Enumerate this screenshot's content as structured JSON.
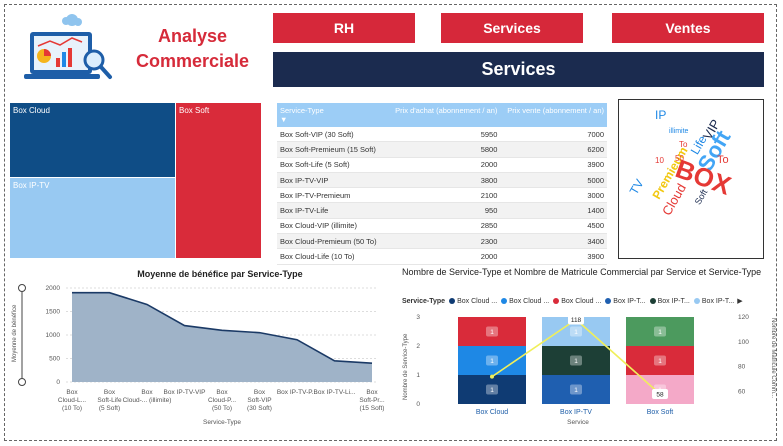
{
  "header": {
    "title_line1": "Analyse",
    "title_line2": "Commerciale",
    "nav": [
      {
        "label": "RH"
      },
      {
        "label": "Services"
      },
      {
        "label": "Ventes"
      }
    ],
    "banner": "Services"
  },
  "treemap": {
    "items": [
      {
        "label": "Box Cloud",
        "color": "#0f4d86"
      },
      {
        "label": "Box Soft",
        "color": "#d92b3a"
      },
      {
        "label": "Box IP-TV",
        "color": "#98c9f2"
      }
    ]
  },
  "price_table": {
    "headers": [
      "Service-Type",
      "Prix d'achat (abonnement / an)",
      "Prix vente (abonnement / an)"
    ],
    "rows": [
      [
        "Box Soft-VIP (30 Soft)",
        "5950",
        "7000"
      ],
      [
        "Box Soft-Premieum (15 Soft)",
        "5800",
        "6200"
      ],
      [
        "Box Soft-Life (5 Soft)",
        "2000",
        "3900"
      ],
      [
        "Box IP-TV-VIP",
        "3800",
        "5000"
      ],
      [
        "Box IP-TV-Premieum",
        "2100",
        "3000"
      ],
      [
        "Box IP-TV-Life",
        "950",
        "1400"
      ],
      [
        "Box Cloud-VIP (illimite)",
        "2850",
        "4500"
      ],
      [
        "Box Cloud-Premieum (50 To)",
        "2300",
        "3400"
      ],
      [
        "Box Cloud-Life (10 To)",
        "2000",
        "3900"
      ]
    ]
  },
  "wordcloud": {
    "words": [
      {
        "text": "IP",
        "color": "#1e88e5"
      },
      {
        "text": "VIP",
        "color": "#1b2b4f"
      },
      {
        "text": "illimite",
        "color": "#1e88e5"
      },
      {
        "text": "Life",
        "color": "#1e88e5"
      },
      {
        "text": "Soft",
        "color": "#42a5f5"
      },
      {
        "text": "Premieum",
        "color": "#f2c811"
      },
      {
        "text": "50",
        "color": "#e53935"
      },
      {
        "text": "To",
        "color": "#e53935"
      },
      {
        "text": "10",
        "color": "#e53935"
      },
      {
        "text": "To",
        "color": "#e53935"
      },
      {
        "text": "TV",
        "color": "#1e88e5"
      },
      {
        "text": "BOX",
        "color": "#e53935"
      },
      {
        "text": "Cloud",
        "color": "#e53935"
      },
      {
        "text": "Soft",
        "color": "#1b2b4f"
      }
    ]
  },
  "area_chart": {
    "title": "Moyenne de bénéfice par Service-Type",
    "ylabel": "Moyenne de bénéfice",
    "xlabel": "Service-Type",
    "chart_data": {
      "type": "area",
      "categories": [
        "Box Cloud-L... (10 To)",
        "Box Soft-Life (5 Soft)",
        "Box Cloud-... (illimite)",
        "Box IP-TV-VIP",
        "Box Cloud-P... (50 To)",
        "Box Soft-VIP (30 Soft)",
        "Box IP-TV-P...",
        "Box IP-TV-Li...",
        "Box Soft-Pr... (15 Soft)"
      ],
      "values": [
        1900,
        1900,
        1650,
        1200,
        1100,
        1050,
        900,
        450,
        400
      ],
      "yticks": [
        "0",
        "500",
        "1000",
        "1500",
        "2000"
      ],
      "ylim": [
        0,
        2000
      ],
      "color": "#1b3a66"
    }
  },
  "combo_chart": {
    "title": "Nombre de Service-Type et Nombre de Matricule Commercial par Service et Service-Type",
    "legend_title": "Service-Type",
    "legend": [
      {
        "name": "Box Cloud ...",
        "color": "#0f3b73"
      },
      {
        "name": "Box Cloud ...",
        "color": "#1e88e5"
      },
      {
        "name": "Box Cloud ...",
        "color": "#d92b3a"
      },
      {
        "name": "Box IP-T...",
        "color": "#1f5fb0"
      },
      {
        "name": "Box IP-T...",
        "color": "#1d3f36"
      },
      {
        "name": "Box IP-T...",
        "color": "#98c9f2"
      }
    ],
    "ylabel_left": "Nombre de Service-Type",
    "ylabel_right": "Nombre de Matricule Comm...",
    "xlabel": "Service",
    "chart_data": {
      "type": "bar",
      "categories": [
        "Box Cloud",
        "Box IP-TV",
        "Box Soft"
      ],
      "stacks": [
        [
          {
            "value": 1,
            "color": "#0f3b73"
          },
          {
            "value": 1,
            "color": "#1e88e5"
          },
          {
            "value": 1,
            "color": "#d92b3a"
          }
        ],
        [
          {
            "value": 1,
            "color": "#1f5fb0"
          },
          {
            "value": 1,
            "color": "#1d3f36"
          },
          {
            "value": 1,
            "color": "#98c9f2"
          }
        ],
        [
          {
            "value": 1,
            "color": "#f4a9c8"
          },
          {
            "value": 1,
            "color": "#d92b3a"
          },
          {
            "value": 1,
            "color": "#4c9a5e"
          }
        ]
      ],
      "line": {
        "values": [
          72,
          118,
          58
        ],
        "labels": [
          "",
          "118",
          "58"
        ],
        "color": "#f0ef5a"
      },
      "yticks_left": [
        "0",
        "1",
        "2",
        "3"
      ],
      "ylim_left": [
        0,
        3
      ],
      "yticks_right": [
        "60",
        "80",
        "100",
        "120"
      ],
      "ylim_right": [
        50,
        120
      ]
    }
  }
}
